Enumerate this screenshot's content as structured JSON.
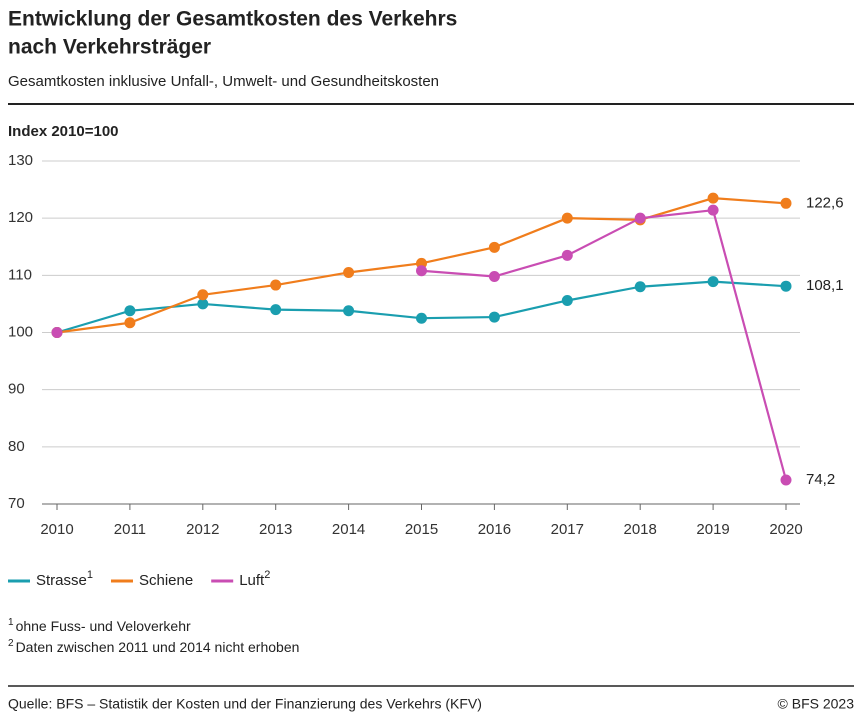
{
  "chart_data": {
    "type": "line",
    "title": [
      "Entwicklung der Gesamtkosten des Verkehrs",
      "nach Verkehrsträger"
    ],
    "subtitle": "Gesamtkosten inklusive Unfall-, Umwelt- und Gesundheitskosten",
    "y_label": "Index 2010=100",
    "x": [
      2010,
      2011,
      2012,
      2013,
      2014,
      2015,
      2016,
      2017,
      2018,
      2019,
      2020
    ],
    "xlim": [
      2010,
      2020
    ],
    "xticks": [
      2010,
      2011,
      2012,
      2013,
      2014,
      2015,
      2016,
      2017,
      2018,
      2019,
      2020
    ],
    "ylim": [
      70,
      130
    ],
    "yticks": [
      70,
      80,
      90,
      100,
      110,
      120,
      130
    ],
    "grid": true,
    "series": [
      {
        "name": "Strasse",
        "note": "1",
        "color": "#1a9eaf",
        "values": [
          100,
          103.8,
          105,
          104,
          103.8,
          102.5,
          102.7,
          105.6,
          108,
          108.9,
          108.1
        ],
        "value_labels": [
          null,
          null,
          null,
          null,
          null,
          null,
          null,
          null,
          null,
          null,
          "108,1"
        ]
      },
      {
        "name": "Schiene",
        "color": "#f07d1c",
        "values": [
          100,
          101.7,
          106.6,
          108.3,
          110.5,
          112.1,
          114.9,
          120,
          119.7,
          123.5,
          122.6
        ],
        "value_labels": [
          null,
          null,
          null,
          null,
          null,
          null,
          null,
          null,
          null,
          null,
          "122,6"
        ]
      },
      {
        "name": "Luft",
        "note": "2",
        "color": "#c94db3",
        "values": [
          100,
          null,
          null,
          null,
          null,
          110.8,
          109.8,
          113.5,
          120,
          121.4,
          74.2
        ],
        "value_labels": [
          null,
          null,
          null,
          null,
          null,
          null,
          null,
          null,
          null,
          null,
          "74,2"
        ]
      }
    ],
    "footnotes": [
      {
        "marker": "1",
        "text": "ohne Fuss- und Veloverkehr"
      },
      {
        "marker": "2",
        "text": "Daten zwischen 2011 und 2014 nicht erhoben"
      }
    ],
    "source": "Quelle: BFS – Statistik der Kosten und der Finanzierung des Verkehrs (KFV)",
    "copyright": "© BFS 2023"
  }
}
